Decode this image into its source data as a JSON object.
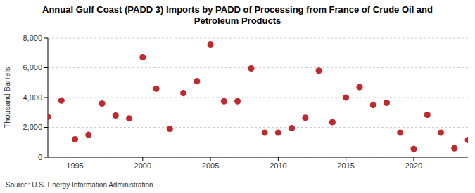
{
  "chart_data": {
    "type": "scatter",
    "title": "Annual Gulf Coast (PADD 3) Imports by PADD of Processing from France of Crude Oil and Petroleum Products",
    "y_label": "Thousand Barrels",
    "source": "Source: U.S. Energy Information Administration",
    "x": [
      1993,
      1994,
      1995,
      1996,
      1997,
      1998,
      1999,
      2000,
      2001,
      2002,
      2003,
      2004,
      2005,
      2006,
      2007,
      2008,
      2009,
      2010,
      2011,
      2012,
      2013,
      2014,
      2015,
      2016,
      2017,
      2018,
      2019,
      2020,
      2021,
      2022,
      2023,
      2024
    ],
    "values": [
      2700,
      3800,
      1200,
      1500,
      3600,
      2800,
      2600,
      6700,
      4600,
      1900,
      4300,
      5100,
      7550,
      3750,
      3750,
      5950,
      1650,
      1650,
      1950,
      2650,
      5800,
      2350,
      4000,
      4700,
      3500,
      3650,
      1650,
      550,
      2850,
      1650,
      600,
      1150
    ],
    "color": "#c0282d",
    "marker": "circle",
    "xlim": [
      1993,
      2024
    ],
    "xticks": [
      1995,
      2000,
      2005,
      2010,
      2015,
      2020
    ],
    "ylim": [
      0,
      8000
    ],
    "yticks": [
      0,
      {
        "value": 2000,
        "label": "2,000"
      },
      {
        "value": 4000,
        "label": "4,000"
      },
      {
        "value": 6000,
        "label": "6,000"
      },
      {
        "value": 8000,
        "label": "8,000"
      }
    ],
    "grid": true
  }
}
